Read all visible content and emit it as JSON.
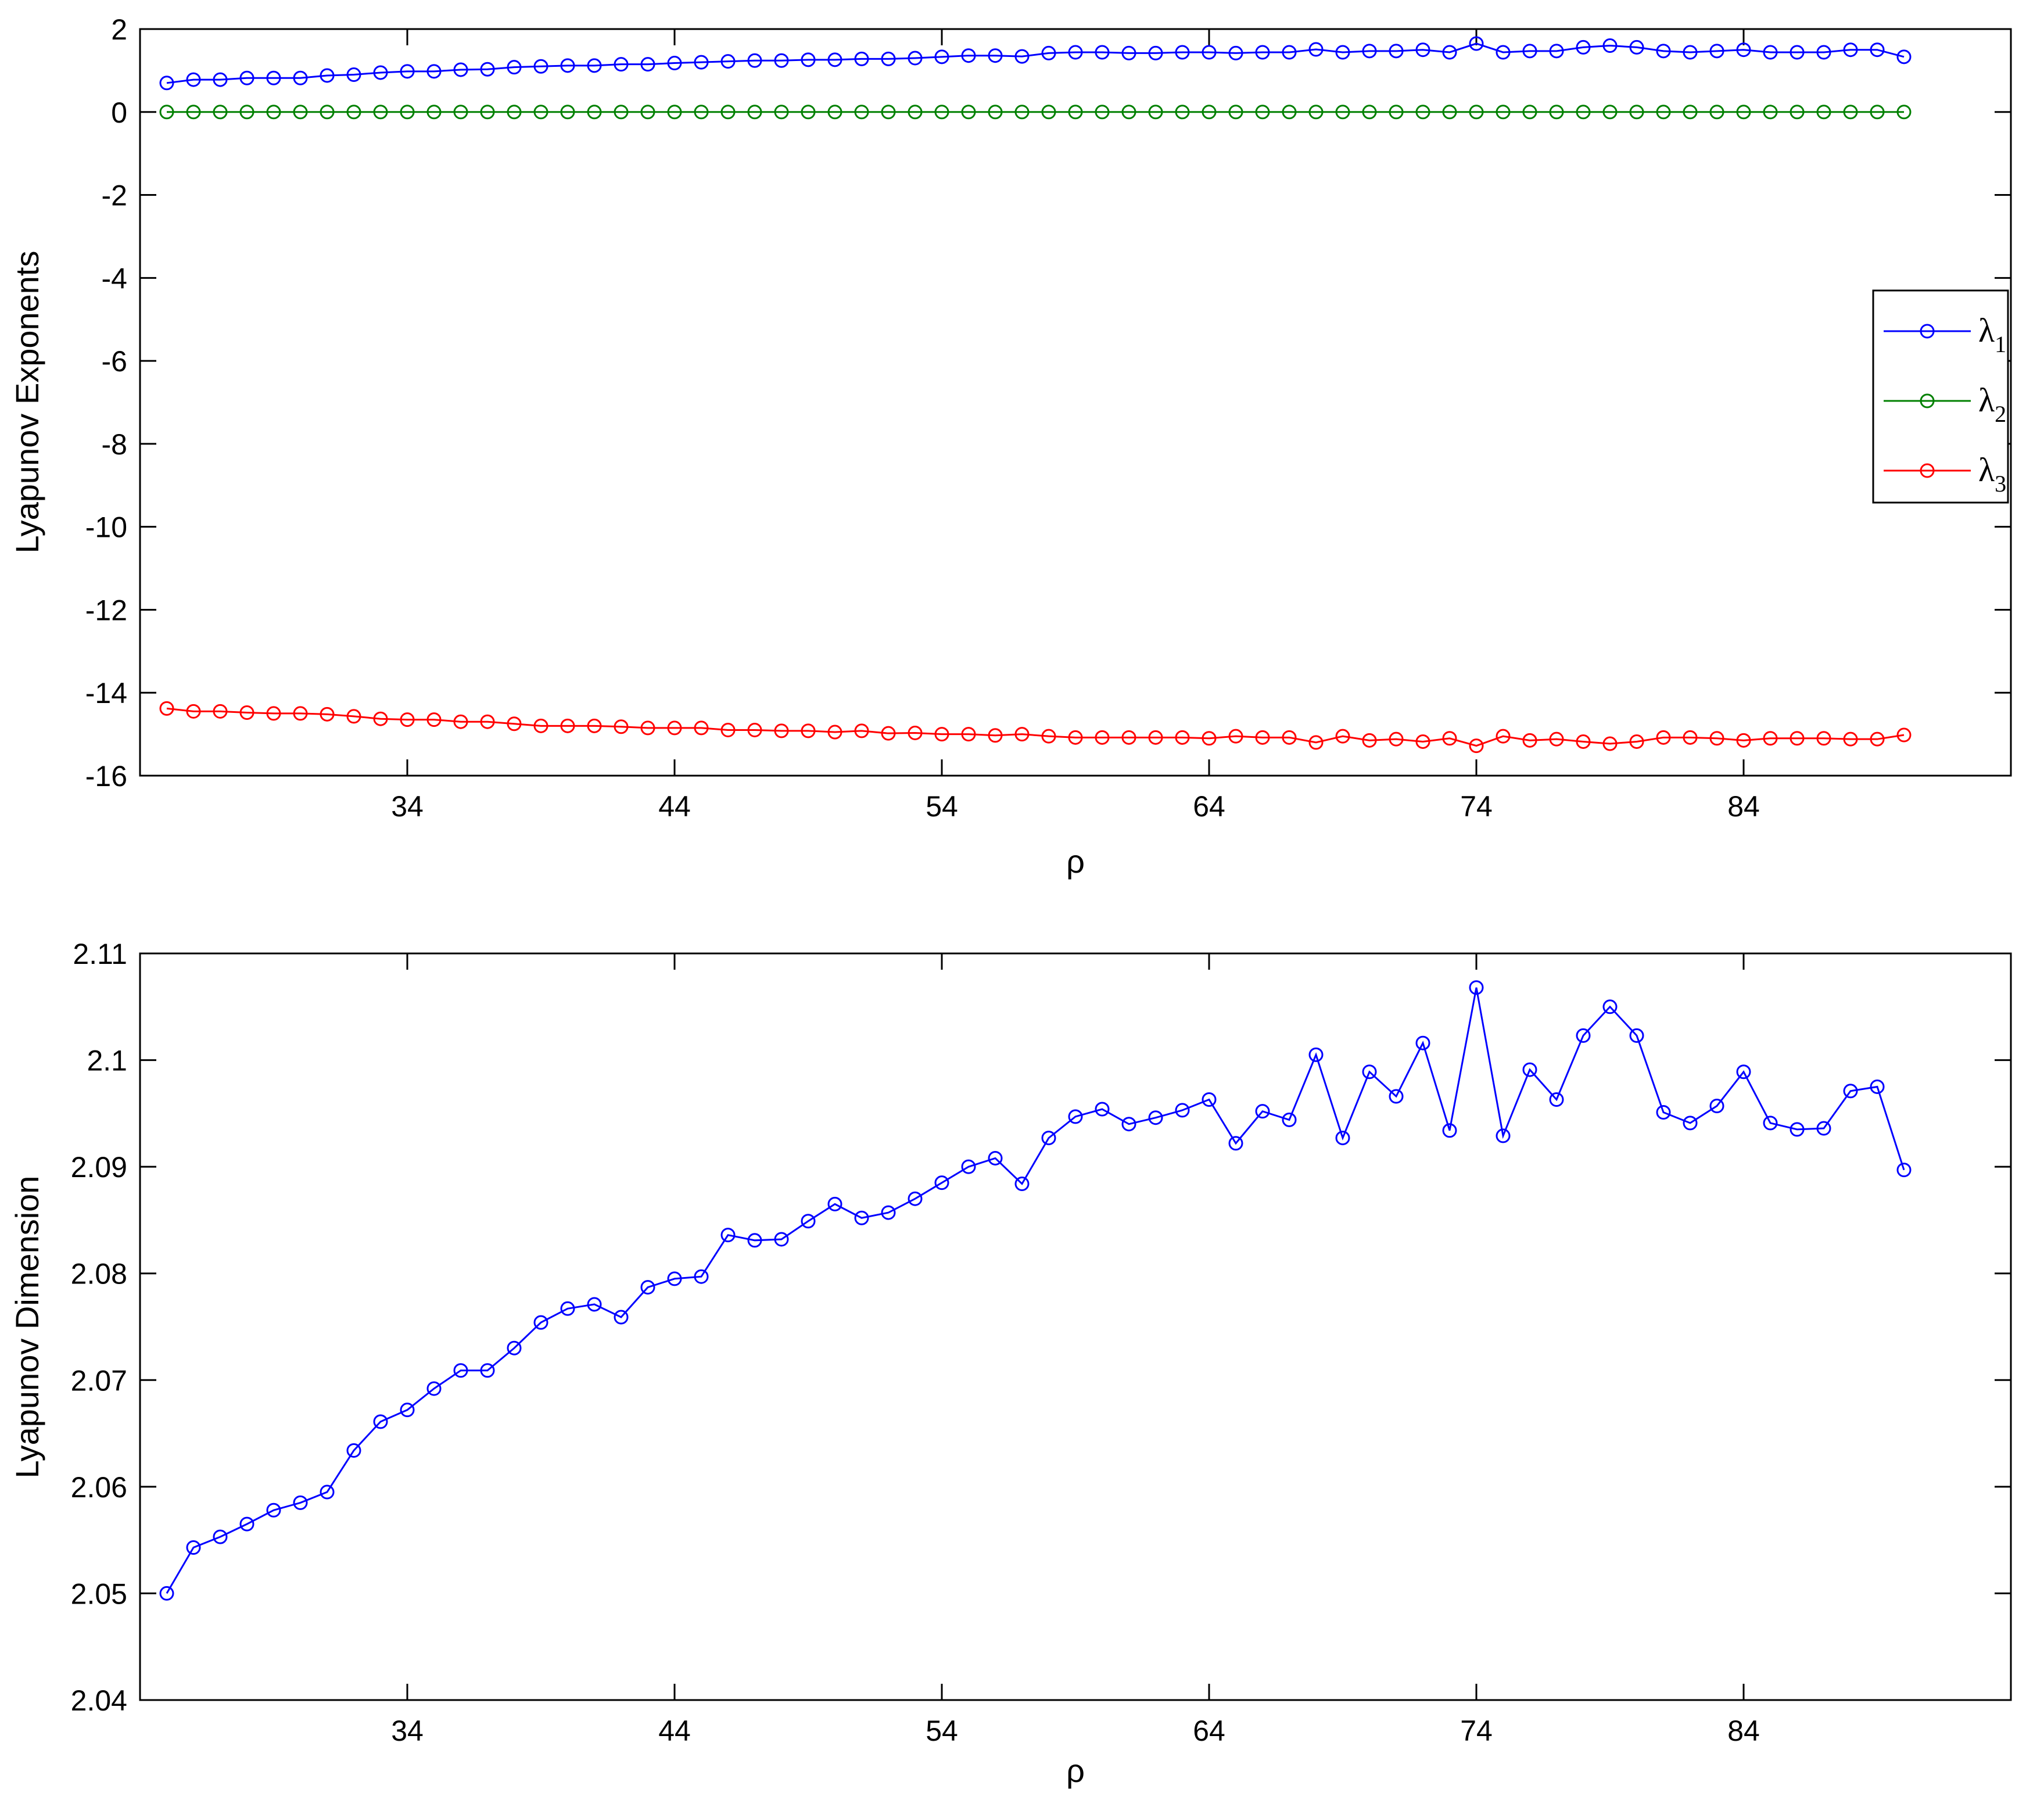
{
  "chart_data": [
    {
      "type": "line",
      "title": "",
      "xlabel": "ρ",
      "ylabel": "Lyapunov Exponents",
      "xlim": [
        24,
        94
      ],
      "ylim": [
        -16,
        2
      ],
      "xticks": [
        34,
        44,
        54,
        64,
        74,
        84
      ],
      "yticks": [
        2,
        0,
        -2,
        -4,
        -6,
        -8,
        -10,
        -12,
        -14,
        -16
      ],
      "grid": false,
      "legend_position": "right",
      "x": [
        25,
        26,
        27,
        28,
        29,
        30,
        31,
        32,
        33,
        34,
        35,
        36,
        37,
        38,
        39,
        40,
        41,
        42,
        43,
        44,
        45,
        46,
        47,
        48,
        49,
        50,
        51,
        52,
        53,
        54,
        55,
        56,
        57,
        58,
        59,
        60,
        61,
        62,
        63,
        64,
        65,
        66,
        67,
        68,
        69,
        70,
        71,
        72,
        73,
        74,
        75,
        76,
        77,
        78,
        79,
        80,
        81,
        82,
        83,
        84,
        85,
        86,
        87,
        88,
        89,
        90
      ],
      "series": [
        {
          "name": "λ",
          "subscript": "1",
          "color": "#0000ff",
          "values": [
            0.7,
            0.78,
            0.78,
            0.82,
            0.82,
            0.82,
            0.88,
            0.9,
            0.95,
            0.98,
            0.98,
            1.02,
            1.03,
            1.08,
            1.1,
            1.12,
            1.12,
            1.15,
            1.15,
            1.18,
            1.2,
            1.22,
            1.24,
            1.24,
            1.26,
            1.26,
            1.28,
            1.28,
            1.3,
            1.33,
            1.36,
            1.36,
            1.34,
            1.42,
            1.44,
            1.44,
            1.42,
            1.42,
            1.44,
            1.44,
            1.42,
            1.44,
            1.44,
            1.51,
            1.44,
            1.47,
            1.47,
            1.5,
            1.44,
            1.65,
            1.44,
            1.47,
            1.47,
            1.56,
            1.6,
            1.56,
            1.47,
            1.44,
            1.47,
            1.5,
            1.44,
            1.44,
            1.44,
            1.5,
            1.5,
            1.33
          ]
        },
        {
          "name": "λ",
          "subscript": "2",
          "color": "#008000",
          "values": [
            0,
            0,
            0,
            0,
            0,
            0,
            0,
            0,
            0,
            0,
            0,
            0,
            0,
            0,
            0,
            0,
            0,
            0,
            0,
            0,
            0,
            0,
            0,
            0,
            0,
            0,
            0,
            0,
            0,
            0,
            0,
            0,
            0,
            0,
            0,
            0,
            0,
            0,
            0,
            0,
            0,
            0,
            0,
            0,
            0,
            0,
            0,
            0,
            0,
            0,
            0,
            0,
            0,
            0,
            0,
            0,
            0,
            0,
            0,
            0,
            0,
            0,
            0,
            0,
            0,
            0
          ]
        },
        {
          "name": "λ",
          "subscript": "3",
          "color": "#ff0000",
          "values": [
            -14.38,
            -14.45,
            -14.45,
            -14.48,
            -14.5,
            -14.5,
            -14.52,
            -14.57,
            -14.63,
            -14.65,
            -14.65,
            -14.7,
            -14.7,
            -14.75,
            -14.8,
            -14.8,
            -14.8,
            -14.82,
            -14.85,
            -14.85,
            -14.85,
            -14.9,
            -14.9,
            -14.92,
            -14.92,
            -14.95,
            -14.92,
            -14.98,
            -14.97,
            -15.0,
            -15.0,
            -15.03,
            -15.0,
            -15.05,
            -15.08,
            -15.08,
            -15.08,
            -15.08,
            -15.08,
            -15.1,
            -15.05,
            -15.08,
            -15.08,
            -15.2,
            -15.05,
            -15.15,
            -15.12,
            -15.18,
            -15.1,
            -15.28,
            -15.05,
            -15.15,
            -15.12,
            -15.18,
            -15.23,
            -15.18,
            -15.08,
            -15.08,
            -15.1,
            -15.15,
            -15.1,
            -15.1,
            -15.1,
            -15.12,
            -15.12,
            -15.02
          ]
        }
      ]
    },
    {
      "type": "line",
      "title": "",
      "xlabel": "ρ",
      "ylabel": "Lyapunov Dimension",
      "xlim": [
        24,
        94
      ],
      "ylim": [
        2.04,
        2.11
      ],
      "xticks": [
        34,
        44,
        54,
        64,
        74,
        84
      ],
      "yticks": [
        "2.11",
        "2.1",
        "2.09",
        "2.08",
        "2.07",
        "2.06",
        "2.05",
        "2.04"
      ],
      "ytick_values": [
        2.11,
        2.1,
        2.09,
        2.08,
        2.07,
        2.06,
        2.05,
        2.04
      ],
      "grid": false,
      "x": [
        25,
        26,
        27,
        28,
        29,
        30,
        31,
        32,
        33,
        34,
        35,
        36,
        37,
        38,
        39,
        40,
        41,
        42,
        43,
        44,
        45,
        46,
        47,
        48,
        49,
        50,
        51,
        52,
        53,
        54,
        55,
        56,
        57,
        58,
        59,
        60,
        61,
        62,
        63,
        64,
        65,
        66,
        67,
        68,
        69,
        70,
        71,
        72,
        73,
        74,
        75,
        76,
        77,
        78,
        79,
        80,
        81,
        82,
        83,
        84,
        85,
        86,
        87,
        88,
        89,
        90
      ],
      "series": [
        {
          "color": "#0000ff",
          "values": [
            2.05,
            2.0543,
            2.0553,
            2.0565,
            2.0578,
            2.0585,
            2.0595,
            2.0634,
            2.0661,
            2.0672,
            2.0692,
            2.0709,
            2.0709,
            2.073,
            2.0754,
            2.0767,
            2.0771,
            2.0759,
            2.0787,
            2.0795,
            2.0797,
            2.0836,
            2.0831,
            2.0832,
            2.0849,
            2.0865,
            2.0852,
            2.0857,
            2.087,
            2.0885,
            2.09,
            2.0908,
            2.0884,
            2.0927,
            2.0947,
            2.0954,
            2.094,
            2.0946,
            2.0953,
            2.0963,
            2.0922,
            2.0952,
            2.0944,
            2.1005,
            2.0927,
            2.0989,
            2.0966,
            2.1016,
            2.0934,
            2.1068,
            2.0929,
            2.0991,
            2.0963,
            2.1023,
            2.105,
            2.1023,
            2.0951,
            2.0941,
            2.0957,
            2.0989,
            2.0941,
            2.0935,
            2.0936,
            2.0971,
            2.0975,
            2.0897
          ]
        }
      ]
    }
  ]
}
